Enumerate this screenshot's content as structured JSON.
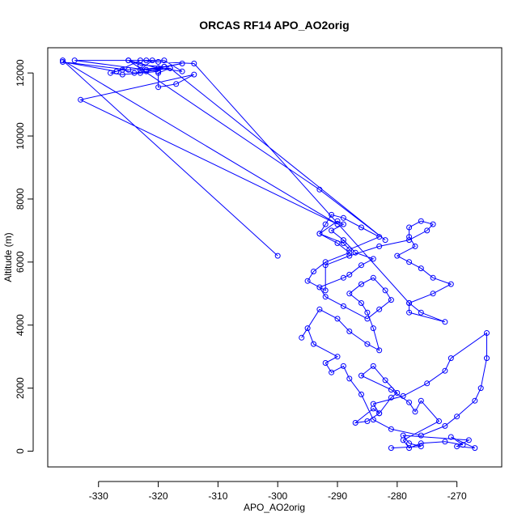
{
  "chart_data": {
    "type": "line",
    "title": "ORCAS RF14 APO_AO2orig",
    "xlabel": "APO_AO2orig",
    "ylabel": "Altitude (m)",
    "xlim": [
      -338.5,
      -262.5
    ],
    "ylim": [
      -500,
      12800
    ],
    "x_ticks": [
      -330,
      -320,
      -310,
      -300,
      -290,
      -280,
      -270
    ],
    "y_ticks": [
      0,
      2000,
      4000,
      6000,
      8000,
      10000,
      12000
    ],
    "x_tick_labels": [
      "-330",
      "-320",
      "-310",
      "-300",
      "-290",
      "-280",
      "-270"
    ],
    "y_tick_labels": [
      "0",
      "2000",
      "4000",
      "6000",
      "8000",
      "10000",
      "12000"
    ],
    "grid": false,
    "series_color": "#0000ff",
    "series": [
      {
        "x": [
          -281,
          -276,
          -278,
          -279,
          -268,
          -270,
          -267,
          -271,
          -269,
          -272,
          -276,
          -278,
          -279,
          -273,
          -276,
          -277,
          -278,
          -281,
          -286,
          -284,
          -282,
          -280,
          -281,
          -283,
          -284,
          -287,
          -285,
          -283,
          -284,
          -279,
          -275,
          -272,
          -271,
          -265,
          -265,
          -266,
          -267,
          -270,
          -272,
          -276,
          -281,
          -284,
          -286,
          -288,
          -289,
          -291,
          -292,
          -290,
          -294,
          -295,
          -296,
          -293,
          -290,
          -288,
          -285,
          -283,
          -284,
          -285,
          -286,
          -288,
          -286,
          -284,
          -282,
          -281,
          -283,
          -285,
          -289,
          -292,
          -293,
          -289,
          -288,
          -286,
          -284,
          -287,
          -289,
          -291,
          -289,
          -290,
          -293,
          -289,
          -288,
          -283,
          -286,
          -289,
          -291,
          -292,
          -293,
          -290,
          -288,
          -292,
          -294,
          -295,
          -292,
          -292,
          -288,
          -283,
          -278,
          -275,
          -274,
          -276,
          -278,
          -278,
          -277,
          -280,
          -278,
          -276,
          -274,
          -271,
          -274,
          -278,
          -278,
          -272,
          -276,
          -278,
          -314,
          -320,
          -323,
          -327,
          -336,
          -325,
          -320,
          -316,
          -319,
          -325,
          -323,
          -319,
          -322,
          -318,
          -322,
          -324,
          -326,
          -327,
          -328,
          -326,
          -323,
          -320,
          -334,
          -322,
          -321,
          -323,
          -319,
          -316,
          -320,
          -325,
          -293,
          -282,
          -318,
          -320,
          -320,
          -317,
          -314,
          -333,
          -290,
          -336,
          -300
        ],
        "y": [
          100,
          150,
          250,
          500,
          350,
          150,
          100,
          450,
          200,
          300,
          250,
          100,
          350,
          950,
          1600,
          1250,
          1550,
          1950,
          2400,
          2700,
          2250,
          1850,
          1700,
          1200,
          1350,
          900,
          950,
          1200,
          1500,
          1750,
          2150,
          2550,
          2950,
          3750,
          2950,
          2000,
          1600,
          1100,
          800,
          500,
          700,
          1000,
          1800,
          2300,
          2700,
          2500,
          2800,
          3000,
          3400,
          3900,
          3600,
          4500,
          4200,
          3800,
          3400,
          3200,
          3900,
          4400,
          4700,
          5000,
          5300,
          5500,
          5100,
          4800,
          4500,
          4200,
          4600,
          4900,
          5200,
          5500,
          5600,
          5900,
          6100,
          6300,
          6700,
          7000,
          7200,
          7300,
          6900,
          6600,
          6400,
          6800,
          7100,
          7400,
          7500,
          7200,
          6900,
          6600,
          6300,
          6000,
          5700,
          5400,
          5100,
          5900,
          6200,
          6500,
          6700,
          7000,
          7200,
          7300,
          7100,
          6800,
          6500,
          6200,
          6000,
          5800,
          5500,
          5300,
          5000,
          4700,
          4400,
          4100,
          4400,
          4700,
          12300,
          12350,
          12400,
          12050,
          12350,
          12100,
          12150,
          12050,
          12400,
          12400,
          12250,
          12200,
          12100,
          12150,
          12050,
          12000,
          12100,
          12050,
          12000,
          11950,
          12000,
          12050,
          12400,
          12400,
          12400,
          12100,
          12200,
          12300,
          12150,
          12400,
          8300,
          6700,
          12150,
          12000,
          11550,
          11650,
          11950,
          11150,
          7200,
          12400,
          6200
        ]
      }
    ]
  }
}
